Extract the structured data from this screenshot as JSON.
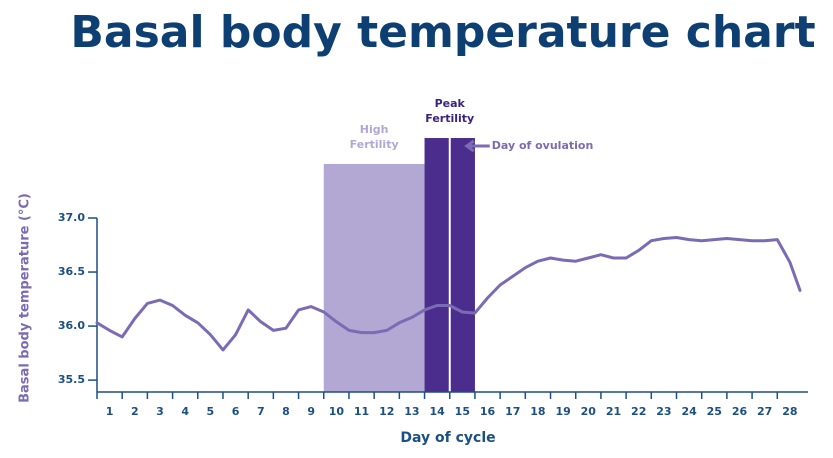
{
  "chart_data": {
    "type": "line",
    "title": "Basal body temperature chart",
    "xlabel": "Day of cycle",
    "ylabel": "Basal body temperature (°C)",
    "xlim": [
      0.5,
      28.6
    ],
    "ylim": [
      35.39,
      37.0
    ],
    "xticks": [
      1,
      2,
      3,
      4,
      5,
      6,
      7,
      8,
      9,
      10,
      11,
      12,
      13,
      14,
      15,
      16,
      17,
      18,
      19,
      20,
      21,
      22,
      23,
      24,
      25,
      26,
      27,
      28
    ],
    "yticks": [
      {
        "value": 37,
        "label": "37.0"
      },
      36.5,
      {
        "value": 36,
        "label": "36.0"
      },
      35.5
    ],
    "series": [
      {
        "color": "#7b6bb5",
        "x": [
          0.5,
          1,
          1.5,
          2,
          2.5,
          3,
          3.5,
          4,
          4.5,
          5,
          5.5,
          6,
          6.5,
          7,
          7.5,
          8,
          8.5,
          9,
          9.5,
          10,
          10.5,
          11,
          11.5,
          12,
          12.5,
          13,
          13.5,
          14,
          14.5,
          15,
          15.5,
          16,
          16.5,
          17,
          17.5,
          18,
          18.5,
          19,
          19.5,
          20,
          20.5,
          21,
          21.5,
          22,
          22.5,
          23,
          23.5,
          24,
          24.5,
          25,
          25.5,
          26,
          26.5,
          27,
          27.5,
          28,
          28.4
        ],
        "values": [
          36.03,
          35.96,
          35.9,
          36.07,
          36.21,
          36.24,
          36.19,
          36.1,
          36.03,
          35.92,
          35.78,
          35.92,
          36.15,
          36.04,
          35.96,
          35.98,
          36.15,
          36.18,
          36.13,
          36.04,
          35.96,
          35.94,
          35.94,
          35.96,
          36.03,
          36.08,
          36.15,
          36.19,
          36.19,
          36.13,
          36.12,
          36.26,
          36.38,
          36.46,
          36.54,
          36.6,
          36.63,
          36.61,
          36.6,
          36.63,
          36.66,
          36.63,
          36.63,
          36.7,
          36.79,
          36.81,
          36.82,
          36.8,
          36.79,
          36.8,
          36.81,
          36.8,
          36.79,
          36.79,
          36.8,
          36.59,
          36.33
        ]
      }
    ],
    "bands": [
      {
        "lines": [
          "High",
          "Fertility"
        ],
        "x": [
          9.5,
          13.5
        ],
        "top": 37.5,
        "color": "#b3a7d3",
        "label_color": "#b3a7d3"
      },
      {
        "lines": [
          "Peak",
          "Fertility"
        ],
        "x": [
          13.5,
          15.5
        ],
        "top": 37.74,
        "color": "#4a2d8c",
        "label_color": "#3a2380"
      }
    ],
    "ovulation": {
      "x": 14.5,
      "label": "Day of ovulation",
      "color": "#7b6bb5"
    }
  }
}
